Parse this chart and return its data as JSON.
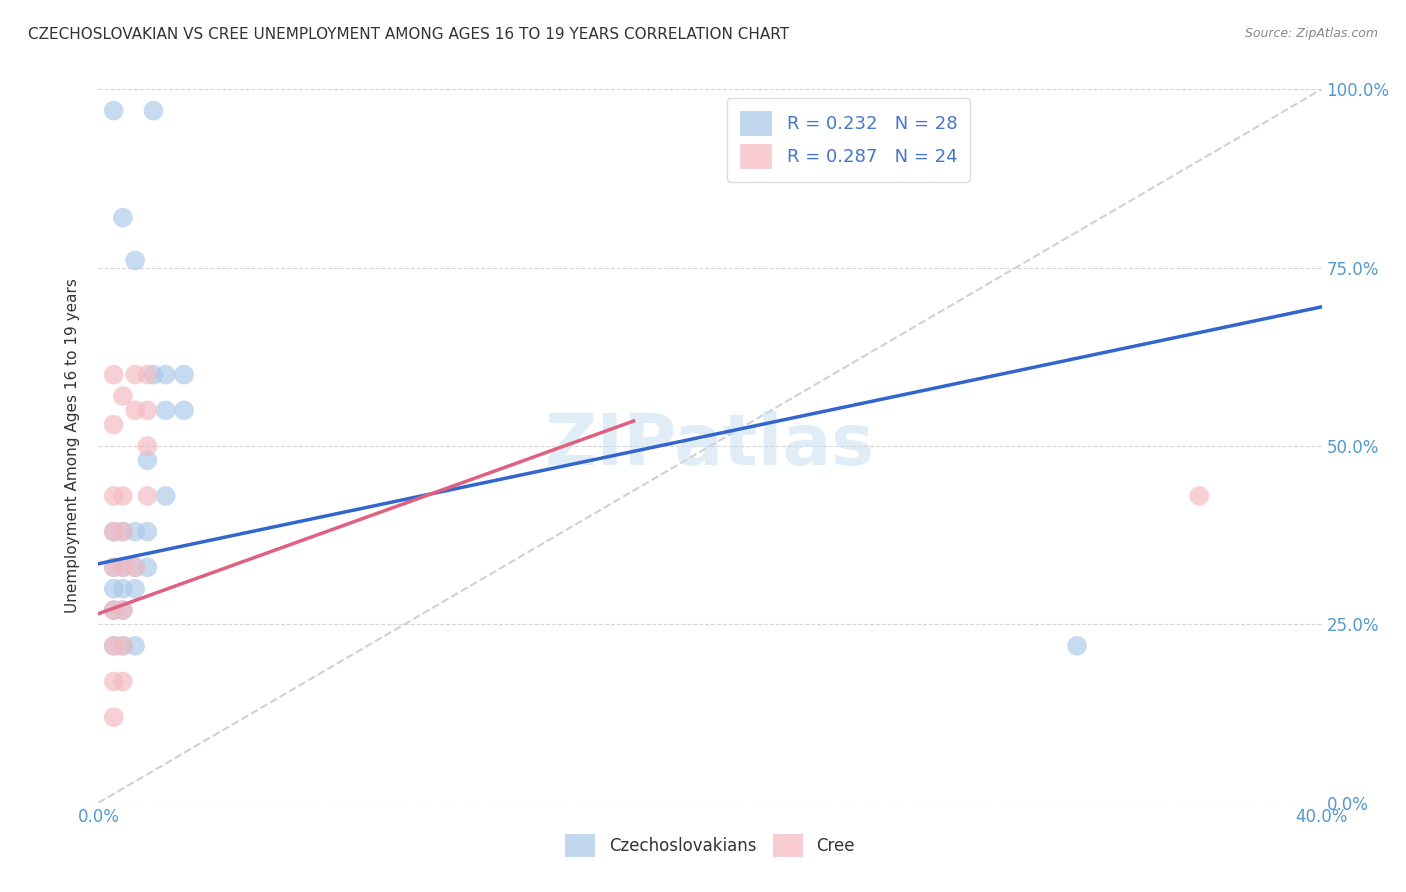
{
  "title": "CZECHOSLOVAKIAN VS CREE UNEMPLOYMENT AMONG AGES 16 TO 19 YEARS CORRELATION CHART",
  "source": "Source: ZipAtlas.com",
  "ylabel": "Unemployment Among Ages 16 to 19 years",
  "x_tick_labels": [
    "0.0%",
    "",
    "",
    "",
    "40.0%"
  ],
  "x_tick_vals": [
    0.0,
    0.1,
    0.2,
    0.3,
    0.4
  ],
  "y_tick_labels_right": [
    "0.0%",
    "25.0%",
    "50.0%",
    "75.0%",
    "100.0%"
  ],
  "y_tick_vals": [
    0.0,
    0.25,
    0.5,
    0.75,
    1.0
  ],
  "xlim": [
    0.0,
    0.4
  ],
  "ylim": [
    0.0,
    1.0
  ],
  "legend_r1_r": "R = 0.232",
  "legend_r1_n": "N = 28",
  "legend_r2_r": "R = 0.287",
  "legend_r2_n": "N = 24",
  "blue_color": "#a8c8e8",
  "pink_color": "#f4b8c0",
  "blue_line_color": "#3366cc",
  "pink_line_color": "#e06080",
  "blue_scatter": [
    [
      0.005,
      0.97
    ],
    [
      0.018,
      0.97
    ],
    [
      0.008,
      0.82
    ],
    [
      0.012,
      0.76
    ],
    [
      0.018,
      0.6
    ],
    [
      0.022,
      0.6
    ],
    [
      0.028,
      0.6
    ],
    [
      0.022,
      0.55
    ],
    [
      0.028,
      0.55
    ],
    [
      0.016,
      0.48
    ],
    [
      0.022,
      0.43
    ],
    [
      0.005,
      0.38
    ],
    [
      0.008,
      0.38
    ],
    [
      0.012,
      0.38
    ],
    [
      0.016,
      0.38
    ],
    [
      0.005,
      0.33
    ],
    [
      0.008,
      0.33
    ],
    [
      0.012,
      0.33
    ],
    [
      0.016,
      0.33
    ],
    [
      0.005,
      0.3
    ],
    [
      0.008,
      0.3
    ],
    [
      0.012,
      0.3
    ],
    [
      0.005,
      0.27
    ],
    [
      0.008,
      0.27
    ],
    [
      0.005,
      0.22
    ],
    [
      0.008,
      0.22
    ],
    [
      0.012,
      0.22
    ],
    [
      0.32,
      0.22
    ]
  ],
  "pink_scatter": [
    [
      0.005,
      0.6
    ],
    [
      0.008,
      0.57
    ],
    [
      0.005,
      0.53
    ],
    [
      0.012,
      0.6
    ],
    [
      0.016,
      0.6
    ],
    [
      0.012,
      0.55
    ],
    [
      0.016,
      0.55
    ],
    [
      0.005,
      0.43
    ],
    [
      0.008,
      0.43
    ],
    [
      0.005,
      0.38
    ],
    [
      0.008,
      0.38
    ],
    [
      0.016,
      0.43
    ],
    [
      0.016,
      0.5
    ],
    [
      0.005,
      0.33
    ],
    [
      0.008,
      0.33
    ],
    [
      0.012,
      0.33
    ],
    [
      0.005,
      0.27
    ],
    [
      0.008,
      0.27
    ],
    [
      0.005,
      0.22
    ],
    [
      0.008,
      0.22
    ],
    [
      0.005,
      0.17
    ],
    [
      0.008,
      0.17
    ],
    [
      0.005,
      0.12
    ],
    [
      0.36,
      0.43
    ]
  ],
  "blue_line": {
    "x0": 0.0,
    "y0": 0.335,
    "x1": 0.4,
    "y1": 0.695
  },
  "pink_line": {
    "x0": 0.0,
    "y0": 0.265,
    "x1": 0.175,
    "y1": 0.535
  },
  "diag_line": {
    "x0": 0.0,
    "y0": 0.0,
    "x1": 0.4,
    "y1": 1.0
  },
  "watermark": "ZIPatlas",
  "background_color": "#ffffff",
  "grid_color": "#cccccc"
}
